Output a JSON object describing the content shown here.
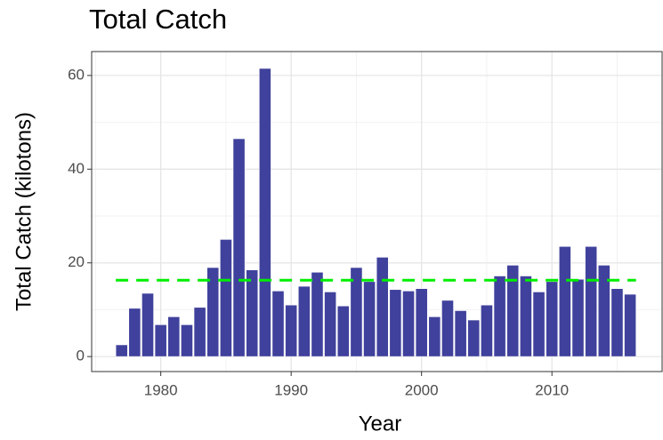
{
  "chart_data": {
    "type": "bar",
    "title": "Total Catch",
    "x_label": "Year",
    "y_label": "Total Catch (kilotons)",
    "x": [
      1977,
      1978,
      1979,
      1980,
      1981,
      1982,
      1983,
      1984,
      1985,
      1986,
      1987,
      1988,
      1989,
      1990,
      1991,
      1992,
      1993,
      1994,
      1995,
      1996,
      1997,
      1998,
      1999,
      2000,
      2001,
      2002,
      2003,
      2004,
      2005,
      2006,
      2007,
      2008,
      2009,
      2010,
      2011,
      2012,
      2013,
      2014,
      2015,
      2016
    ],
    "values": [
      2.5,
      10.3,
      13.5,
      6.8,
      8.5,
      6.8,
      10.5,
      19,
      25,
      46.5,
      18.5,
      61.5,
      14,
      11,
      15,
      18,
      13.8,
      10.8,
      19,
      16,
      21.2,
      14.3,
      14,
      14.5,
      8.5,
      12,
      9.8,
      7.8,
      11,
      17.2,
      19.5,
      17.2,
      13.8,
      16,
      23.5,
      16.5,
      23.5,
      19.5,
      14.5,
      13.3
    ],
    "color": "#40419c",
    "reference_line": {
      "value": 16.3,
      "color": "#00ee00"
    },
    "xlim": [
      1974.7,
      2018.45
    ],
    "xticks": [
      1980,
      1990,
      2000,
      2010
    ],
    "xminor": [
      1975,
      1985,
      1995,
      2005,
      2015
    ],
    "ylim": [
      -3.2,
      65.1
    ],
    "yticks": [
      0,
      20,
      40,
      60
    ],
    "yminor": [
      10,
      30,
      50
    ],
    "grid": true
  }
}
